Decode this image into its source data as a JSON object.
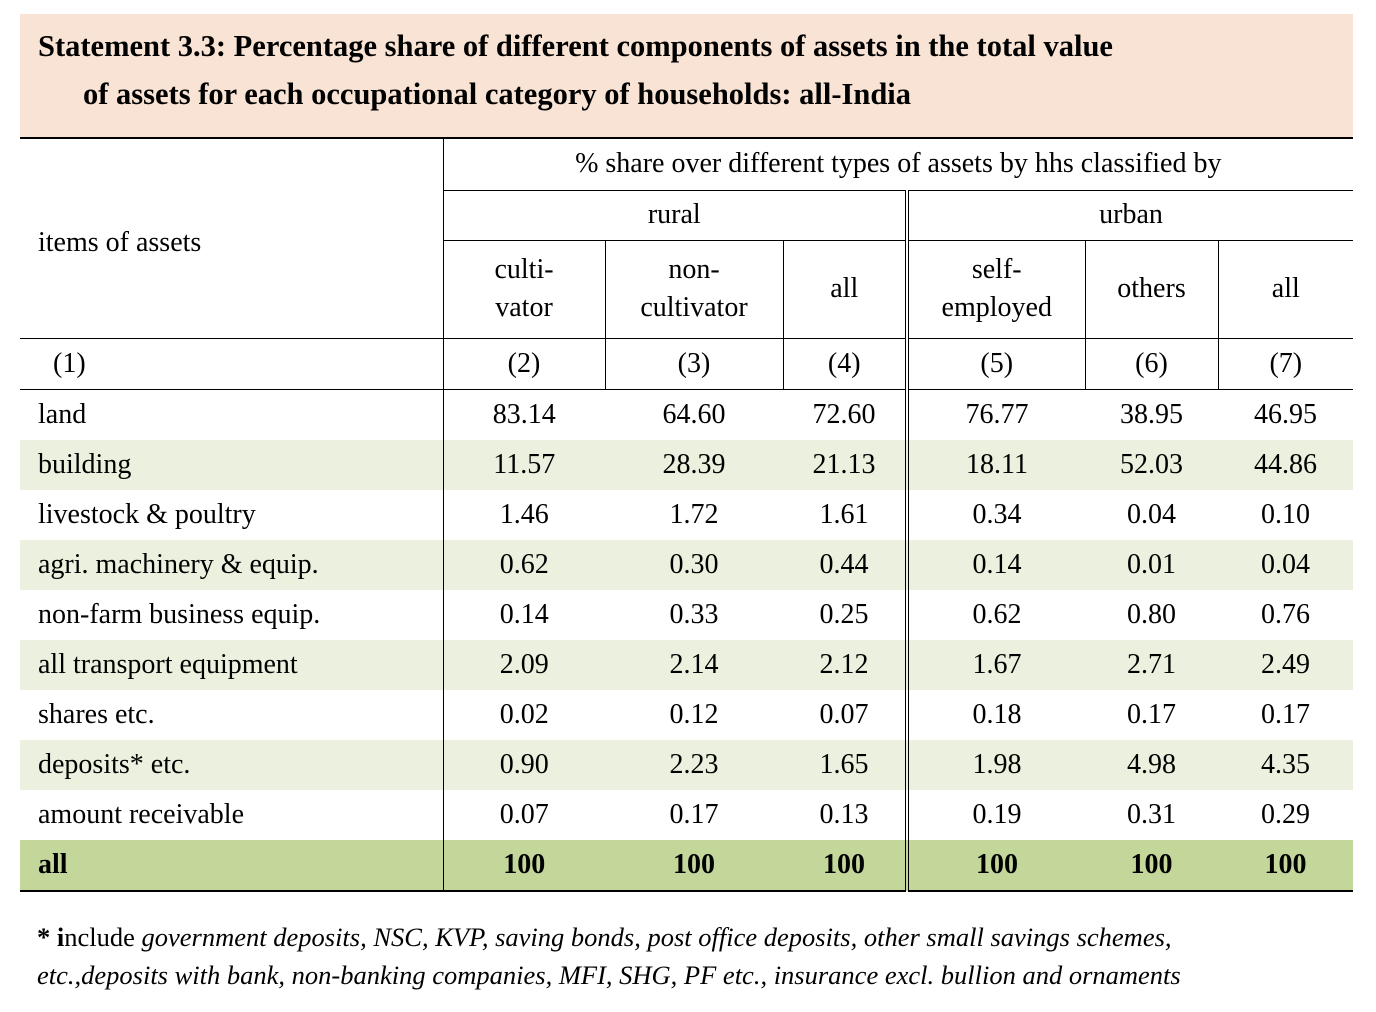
{
  "title": {
    "line1": "Statement 3.3: Percentage share of different components of assets in the total value",
    "line2": "of assets for each occupational category of households: all-India"
  },
  "header": {
    "items_label": "items  of  assets",
    "span_label": "% share over different types of assets by hhs classified by",
    "rural": "rural",
    "urban": "urban",
    "columns": [
      {
        "line1": "culti-",
        "line2": "vator"
      },
      {
        "line1": "non-",
        "line2": "cultivator"
      },
      {
        "line1": "all",
        "line2": ""
      },
      {
        "line1": "self-",
        "line2": "employed"
      },
      {
        "line1": "others",
        "line2": ""
      },
      {
        "line1": "all",
        "line2": ""
      }
    ],
    "numbers": [
      "(1)",
      "(2)",
      "(3)",
      "(4)",
      "(5)",
      "(6)",
      "(7)"
    ]
  },
  "rows": [
    {
      "label": "land",
      "values": [
        "83.14",
        "64.60",
        "72.60",
        "76.77",
        "38.95",
        "46.95"
      ]
    },
    {
      "label": "building",
      "values": [
        "11.57",
        "28.39",
        "21.13",
        "18.11",
        "52.03",
        "44.86"
      ]
    },
    {
      "label": "livestock & poultry",
      "values": [
        "1.46",
        "1.72",
        "1.61",
        "0.34",
        "0.04",
        "0.10"
      ]
    },
    {
      "label": "agri. machinery & equip.",
      "values": [
        "0.62",
        "0.30",
        "0.44",
        "0.14",
        "0.01",
        "0.04"
      ]
    },
    {
      "label": "non-farm business equip.",
      "values": [
        "0.14",
        "0.33",
        "0.25",
        "0.62",
        "0.80",
        "0.76"
      ]
    },
    {
      "label": "all transport equipment",
      "values": [
        "2.09",
        "2.14",
        "2.12",
        "1.67",
        "2.71",
        "2.49"
      ]
    },
    {
      "label": "shares etc.",
      "values": [
        "0.02",
        "0.12",
        "0.07",
        "0.18",
        "0.17",
        "0.17"
      ]
    },
    {
      "label": "deposits* etc.",
      "values": [
        "0.90",
        "2.23",
        "1.65",
        "1.98",
        "4.98",
        "4.35"
      ]
    },
    {
      "label": "amount receivable",
      "values": [
        "0.07",
        "0.17",
        "0.13",
        "0.19",
        "0.31",
        "0.29"
      ]
    }
  ],
  "total": {
    "label": "all",
    "values": [
      "100",
      "100",
      "100",
      "100",
      "100",
      "100"
    ]
  },
  "footnote": {
    "star": "* i",
    "include": "nclude ",
    "line1_italic": "government deposits, NSC, KVP, saving bonds, post office deposits, other small savings schemes,",
    "line2_italic": "etc.,deposits with  bank, non-banking companies, MFI, SHG, PF etc., insurance excl. bullion and ornaments"
  },
  "colors": {
    "title_bg": "#f8e3d4",
    "row_shade": "#ebf1de",
    "total_row": "#c4d79b"
  }
}
